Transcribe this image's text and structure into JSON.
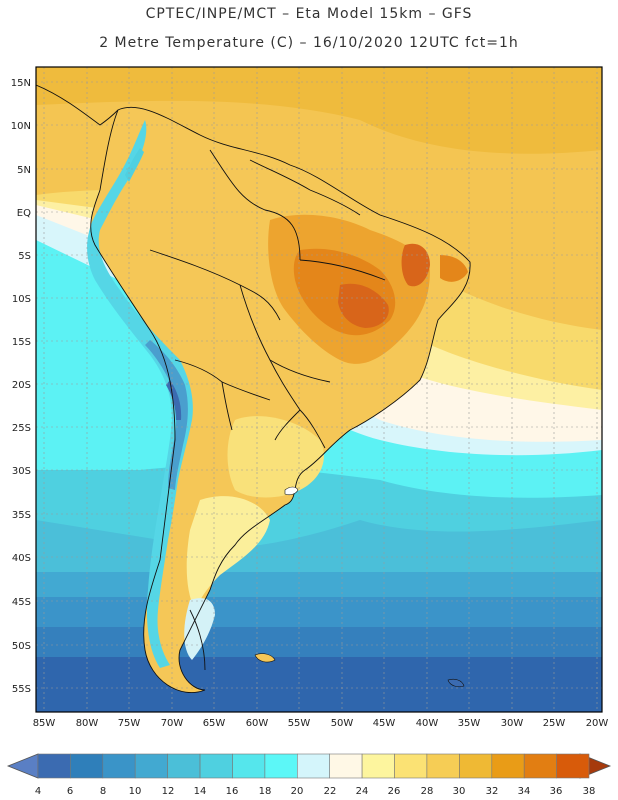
{
  "header": {
    "line1": "CPTEC/INPE/MCT –  Eta Model 15km – GFS",
    "line2": "2 Metre Temperature (C) – 16/10/2020 12UTC fct=1h"
  },
  "map": {
    "lat_labels": [
      "15N",
      "10N",
      "5N",
      "EQ",
      "5S",
      "10S",
      "15S",
      "20S",
      "25S",
      "30S",
      "35S",
      "40S",
      "45S",
      "50S",
      "55S"
    ],
    "lon_labels": [
      "85W",
      "80W",
      "75W",
      "70W",
      "65W",
      "60W",
      "55W",
      "50W",
      "45W",
      "40W",
      "35W",
      "30W",
      "25W",
      "20W"
    ]
  },
  "legend": {
    "values": [
      "4",
      "6",
      "8",
      "10",
      "12",
      "14",
      "16",
      "18",
      "20",
      "22",
      "24",
      "26",
      "28",
      "30",
      "32",
      "34",
      "36",
      "38"
    ],
    "colors": [
      "#3b6bb1",
      "#2f7fba",
      "#3a94c8",
      "#42a9d1",
      "#4bbfd8",
      "#4fd0e0",
      "#55e6ec",
      "#5cf7f7",
      "#d4f5fb",
      "#fff8e6",
      "#fdf59e",
      "#fbe274",
      "#f6cd55",
      "#efb934",
      "#e99c17",
      "#e27e12",
      "#d85b0a",
      "#b83a03"
    ]
  }
}
